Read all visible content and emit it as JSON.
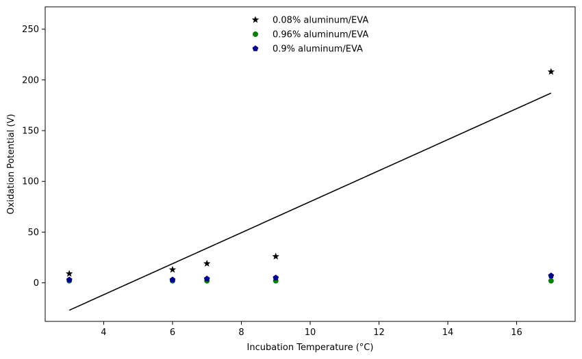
{
  "chart_data": {
    "type": "scatter",
    "xlabel": "Incubation Temperature (°C)",
    "ylabel": "Oxidation Potential (V)",
    "xlim": [
      2.3,
      17.7
    ],
    "ylim": [
      -38,
      272
    ],
    "xticks": [
      4,
      6,
      8,
      10,
      12,
      14,
      16
    ],
    "yticks": [
      0,
      50,
      100,
      150,
      200,
      250
    ],
    "grid": false,
    "legend_position": "upper center",
    "x": [
      3,
      6,
      7,
      9,
      17
    ],
    "series": [
      {
        "name": "0.08% aluminum/EVA",
        "marker": "star",
        "color": "#000000",
        "values": [
          9,
          13,
          19,
          26,
          208
        ]
      },
      {
        "name": "0.96% aluminum/EVA",
        "marker": "circle",
        "color": "#008000",
        "values": [
          2,
          2,
          2,
          2,
          2
        ]
      },
      {
        "name": "0.9% aluminum/EVA",
        "marker": "pentagon",
        "color": "#00008b",
        "values": [
          3,
          3,
          4,
          5,
          7
        ]
      }
    ],
    "fit_line": {
      "color": "#000000",
      "x": [
        3,
        17
      ],
      "y": [
        -27,
        187
      ]
    }
  }
}
